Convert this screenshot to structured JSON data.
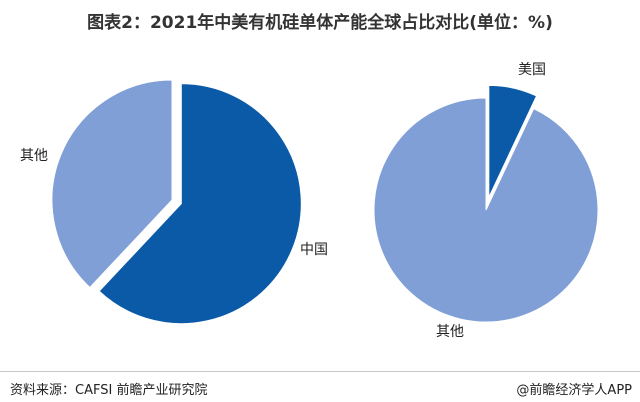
{
  "title": "图表2：2021年中美有机硅单体产能全球占比对比(单位：%)",
  "source": "资料来源：CAFSI 前瞻产业研究院",
  "brand": "@前瞻经济学人APP",
  "chart_data": [
    {
      "type": "pie",
      "labels": [
        "中国",
        "其他"
      ],
      "values": [
        62,
        38
      ],
      "colors": [
        "#0a5aa8",
        "#7f9fd6"
      ],
      "exploded": "中国"
    },
    {
      "type": "pie",
      "labels": [
        "美国",
        "其他"
      ],
      "values": [
        7,
        93
      ],
      "colors": [
        "#0a5aa8",
        "#7f9fd6"
      ],
      "exploded": "美国"
    }
  ]
}
